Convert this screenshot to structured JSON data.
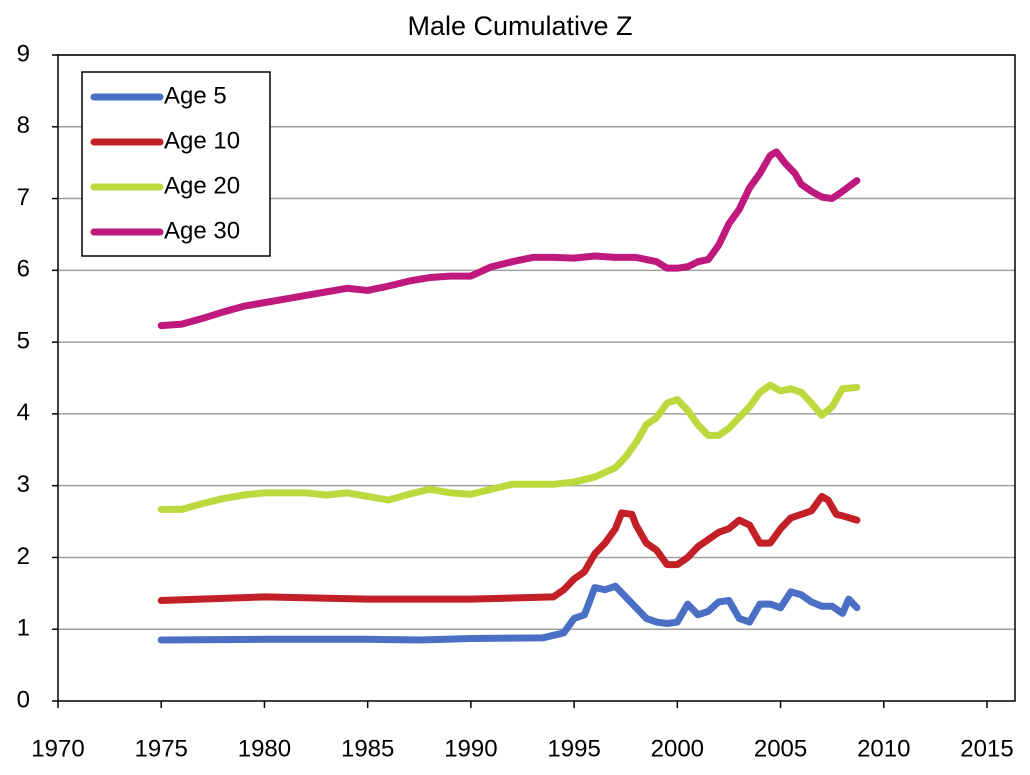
{
  "chart_data": {
    "type": "line",
    "title": "Male Cumulative Z",
    "xlim": [
      1970,
      2015
    ],
    "xticks": [
      1970,
      1975,
      1980,
      1985,
      1990,
      1995,
      2000,
      2005,
      2010,
      2015
    ],
    "ylim": [
      0,
      9
    ],
    "yticks": [
      0,
      1,
      2,
      3,
      4,
      5,
      6,
      7,
      8,
      9
    ],
    "grid": true,
    "legend": "top-left",
    "series": [
      {
        "name": "Age 5",
        "color": "#4a6fc4",
        "x": [
          1975,
          1980,
          1985,
          1987.5,
          1990,
          1993.5,
          1994.5,
          1995,
          1995.5,
          1996,
          1996.5,
          1997,
          1997.5,
          1998,
          1998.5,
          1999,
          1999.5,
          2000,
          2000.5,
          2001,
          2001.5,
          2002,
          2002.5,
          2003,
          2003.5,
          2004,
          2004.5,
          2005,
          2005.5,
          2006,
          2006.5,
          2007,
          2007.5,
          2008,
          2008.3,
          2008.7
        ],
        "values": [
          0.85,
          0.86,
          0.86,
          0.85,
          0.87,
          0.88,
          0.95,
          1.15,
          1.2,
          1.58,
          1.55,
          1.6,
          1.45,
          1.3,
          1.15,
          1.1,
          1.08,
          1.1,
          1.35,
          1.2,
          1.25,
          1.38,
          1.4,
          1.15,
          1.1,
          1.35,
          1.35,
          1.3,
          1.52,
          1.48,
          1.38,
          1.32,
          1.32,
          1.22,
          1.42,
          1.3
        ]
      },
      {
        "name": "Age 10",
        "color": "#c21f26",
        "x": [
          1975,
          1980,
          1985,
          1990,
          1994,
          1994.5,
          1995,
          1995.5,
          1996,
          1996.5,
          1997,
          1997.3,
          1997.8,
          1998,
          1998.5,
          1999,
          1999.5,
          2000,
          2000.5,
          2001,
          2002,
          2002.5,
          2003,
          2003.5,
          2004,
          2004.5,
          2005,
          2005.5,
          2006,
          2006.5,
          2007,
          2007.3,
          2007.7,
          2008,
          2008.7
        ],
        "values": [
          1.4,
          1.45,
          1.42,
          1.42,
          1.45,
          1.55,
          1.7,
          1.8,
          2.05,
          2.2,
          2.4,
          2.62,
          2.6,
          2.45,
          2.2,
          2.1,
          1.9,
          1.9,
          2.0,
          2.15,
          2.35,
          2.4,
          2.52,
          2.45,
          2.2,
          2.2,
          2.4,
          2.55,
          2.6,
          2.65,
          2.85,
          2.8,
          2.6,
          2.58,
          2.52
        ]
      },
      {
        "name": "Age 20",
        "color": "#bada3e",
        "x": [
          1975,
          1976,
          1977,
          1978,
          1979,
          1980,
          1982,
          1983,
          1984,
          1985,
          1986,
          1987,
          1988,
          1989,
          1990,
          1991,
          1992,
          1993,
          1994,
          1995,
          1996,
          1997,
          1997.5,
          1998,
          1998.5,
          1999,
          1999.5,
          2000,
          2000.5,
          2001,
          2001.5,
          2002,
          2002.5,
          2003,
          2003.5,
          2004,
          2004.5,
          2005,
          2005.5,
          2006,
          2006.5,
          2007,
          2007.5,
          2008,
          2008.7
        ],
        "values": [
          2.67,
          2.67,
          2.75,
          2.82,
          2.87,
          2.9,
          2.9,
          2.87,
          2.9,
          2.85,
          2.8,
          2.88,
          2.95,
          2.9,
          2.88,
          2.95,
          3.02,
          3.02,
          3.02,
          3.05,
          3.12,
          3.25,
          3.4,
          3.6,
          3.85,
          3.95,
          4.15,
          4.2,
          4.05,
          3.85,
          3.7,
          3.7,
          3.8,
          3.95,
          4.1,
          4.3,
          4.4,
          4.32,
          4.35,
          4.3,
          4.15,
          3.98,
          4.1,
          4.35,
          4.37
        ]
      },
      {
        "name": "Age 30",
        "color": "#c0197e",
        "x": [
          1975,
          1976,
          1977,
          1978,
          1979,
          1980,
          1981,
          1982,
          1983,
          1984,
          1985,
          1986,
          1987,
          1988,
          1989,
          1990,
          1991,
          1992,
          1993,
          1994,
          1995,
          1996,
          1997,
          1998,
          1999,
          1999.5,
          2000,
          2000.5,
          2001,
          2001.5,
          2002,
          2002.5,
          2003,
          2003.5,
          2004,
          2004.5,
          2004.8,
          2005.2,
          2005.7,
          2006,
          2006.5,
          2007,
          2007.5,
          2008,
          2008.7
        ],
        "values": [
          5.23,
          5.25,
          5.33,
          5.42,
          5.5,
          5.55,
          5.6,
          5.65,
          5.7,
          5.75,
          5.72,
          5.78,
          5.85,
          5.9,
          5.92,
          5.92,
          6.05,
          6.12,
          6.18,
          6.18,
          6.17,
          6.2,
          6.18,
          6.18,
          6.12,
          6.03,
          6.03,
          6.05,
          6.12,
          6.15,
          6.35,
          6.65,
          6.85,
          7.15,
          7.35,
          7.6,
          7.65,
          7.5,
          7.35,
          7.2,
          7.1,
          7.02,
          7.0,
          7.1,
          7.25
        ]
      }
    ]
  }
}
